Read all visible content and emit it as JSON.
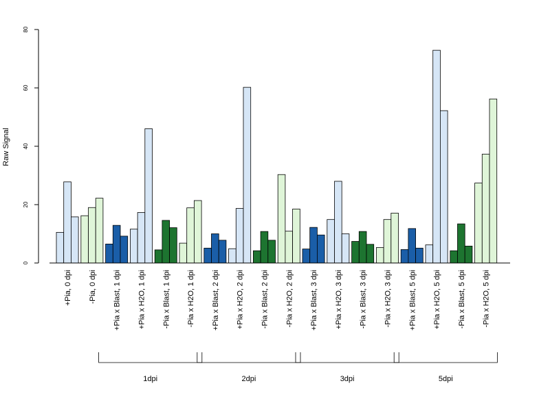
{
  "chart_data": {
    "type": "bar",
    "ylabel": "Raw Signal",
    "ylim": [
      0,
      80
    ],
    "yticks": [
      0,
      20,
      40,
      60,
      80
    ],
    "grid": false,
    "legend": "none",
    "colors": {
      "light_blue": "#d6e6f6",
      "light_green": "#dff5d8",
      "dark_blue": "#1a5ea8",
      "dark_green": "#1d7430",
      "stroke": "#000000"
    },
    "categories": [
      {
        "label": "+Pia, 0 dpi",
        "color": "light_blue",
        "values": [
          10.5,
          27.8,
          15.8
        ]
      },
      {
        "label": "-Pia, 0 dpi",
        "color": "light_green",
        "values": [
          16.2,
          19.0,
          22.2
        ]
      },
      {
        "label": "+Pia x Blast, 1 dpi",
        "color": "dark_blue",
        "values": [
          6.5,
          12.9,
          9.2
        ]
      },
      {
        "label": "+Pia x H2O, 1 dpi",
        "color": "light_blue",
        "values": [
          11.6,
          17.3,
          46.0
        ]
      },
      {
        "label": "-Pia x Blast, 1 dpi",
        "color": "dark_green",
        "values": [
          4.5,
          14.6,
          12.1
        ]
      },
      {
        "label": "-Pia x H2O, 1 dpi",
        "color": "light_green",
        "values": [
          6.8,
          18.9,
          21.4
        ]
      },
      {
        "label": "+Pia x Blast, 2 dpi",
        "color": "dark_blue",
        "values": [
          5.1,
          10.0,
          7.8
        ]
      },
      {
        "label": "+Pia x H2O, 2 dpi",
        "color": "light_blue",
        "values": [
          4.9,
          18.7,
          60.2
        ]
      },
      {
        "label": "-Pia x Blast, 2 dpi",
        "color": "dark_green",
        "values": [
          4.2,
          10.8,
          7.8
        ]
      },
      {
        "label": "-Pia x H2O, 2 dpi",
        "color": "light_green",
        "values": [
          30.3,
          10.9,
          18.5
        ]
      },
      {
        "label": "+Pia x Blast, 3 dpi",
        "color": "dark_blue",
        "values": [
          4.8,
          12.2,
          9.6
        ]
      },
      {
        "label": "+Pia x H2O, 3 dpi",
        "color": "light_blue",
        "values": [
          14.9,
          28.0,
          10.0
        ]
      },
      {
        "label": "-Pia x Blast, 3 dpi",
        "color": "dark_green",
        "values": [
          7.4,
          10.8,
          6.4
        ]
      },
      {
        "label": "-Pia x H2O, 3 dpi",
        "color": "light_green",
        "values": [
          5.3,
          14.9,
          17.1
        ]
      },
      {
        "label": "+Pia x Blast, 5 dpi",
        "color": "dark_blue",
        "values": [
          4.6,
          11.8,
          5.1
        ]
      },
      {
        "label": "+Pia x H2O, 5 dpi",
        "color": "light_blue",
        "values": [
          6.2,
          72.9,
          52.2
        ]
      },
      {
        "label": "-Pia x Blast, 5 dpi",
        "color": "dark_green",
        "values": [
          4.2,
          13.4,
          5.8
        ]
      },
      {
        "label": "-Pia x H2O, 5 dpi",
        "color": "light_green",
        "values": [
          27.4,
          37.3,
          56.2
        ]
      }
    ],
    "groups": [
      {
        "label": "1dpi",
        "first": 2,
        "last": 5
      },
      {
        "label": "2dpi",
        "first": 6,
        "last": 9
      },
      {
        "label": "3dpi",
        "first": 10,
        "last": 13
      },
      {
        "label": "5dpi",
        "first": 14,
        "last": 17
      }
    ]
  }
}
